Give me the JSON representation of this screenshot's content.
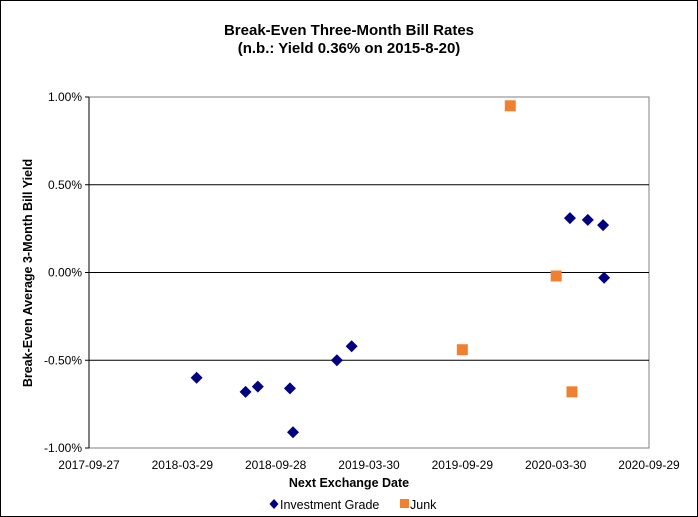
{
  "chart_data": {
    "type": "scatter",
    "title": "Break-Even Three-Month Bill Rates",
    "subtitle": "(n.b.: Yield 0.36% on 2015-8-20)",
    "xlabel": "Next Exchange Date",
    "ylabel": "Break-Even Average 3-Month  Bill Yield",
    "xlim": [
      "2017-09-27",
      "2020-09-29"
    ],
    "ylim": [
      -1.0,
      1.0
    ],
    "x_ticks": [
      "2017-09-27",
      "2018-03-29",
      "2018-09-28",
      "2019-03-30",
      "2019-09-29",
      "2020-03-30",
      "2020-09-29"
    ],
    "y_ticks": [
      {
        "value": 1.0,
        "label": "1.00%"
      },
      {
        "value": 0.5,
        "label": "0.50%"
      },
      {
        "value": 0.0,
        "label": "0.00%"
      },
      {
        "value": -0.5,
        "label": "-0.50%"
      },
      {
        "value": -1.0,
        "label": "-1.00%"
      }
    ],
    "grid": "horizontal",
    "legend_position": "bottom",
    "series": [
      {
        "name": "Investment Grade",
        "color": "#000080",
        "marker": "diamond",
        "points": [
          {
            "x": "2018-04-26",
            "y": -0.6
          },
          {
            "x": "2018-07-31",
            "y": -0.68
          },
          {
            "x": "2018-08-24",
            "y": -0.65
          },
          {
            "x": "2018-10-26",
            "y": -0.66
          },
          {
            "x": "2018-11-01",
            "y": -0.91
          },
          {
            "x": "2019-01-26",
            "y": -0.5
          },
          {
            "x": "2019-02-24",
            "y": -0.42
          },
          {
            "x": "2020-04-27",
            "y": 0.31
          },
          {
            "x": "2020-06-01",
            "y": 0.3
          },
          {
            "x": "2020-07-01",
            "y": 0.27
          },
          {
            "x": "2020-07-03",
            "y": -0.03
          }
        ]
      },
      {
        "name": "Junk",
        "color": "#F08030",
        "marker": "square",
        "points": [
          {
            "x": "2019-09-29",
            "y": -0.44
          },
          {
            "x": "2020-01-01",
            "y": 0.95
          },
          {
            "x": "2020-03-31",
            "y": -0.02
          },
          {
            "x": "2020-05-01",
            "y": -0.68
          }
        ]
      }
    ]
  }
}
